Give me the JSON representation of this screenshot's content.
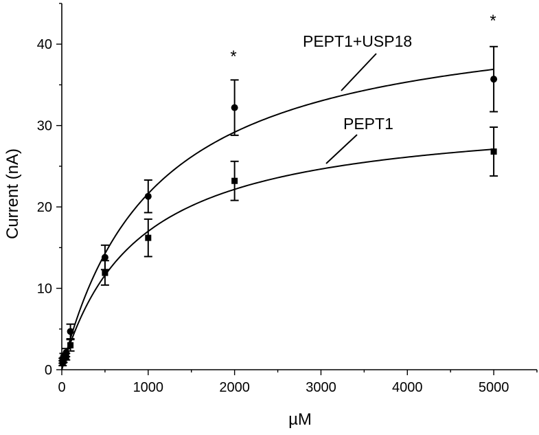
{
  "chart_data": {
    "type": "scatter",
    "xlabel": "µM",
    "ylabel": "Current (nA)",
    "xlim": [
      0,
      5500
    ],
    "ylim": [
      0,
      45
    ],
    "x_ticks": [
      0,
      1000,
      2000,
      3000,
      4000,
      5000
    ],
    "y_ticks": [
      0,
      10,
      20,
      30,
      40
    ],
    "x_tick_labels": [
      "0",
      "1000",
      "2000",
      "3000",
      "4000",
      "5000"
    ],
    "y_tick_labels": [
      "0",
      "10",
      "20",
      "30",
      "40"
    ],
    "grid": false,
    "series": [
      {
        "name": "PEPT1+USP18",
        "marker": "circle",
        "x": [
          10,
          20,
          50,
          100,
          500,
          1000,
          2000,
          5000
        ],
        "y": [
          1.1,
          1.6,
          2.1,
          4.7,
          13.8,
          21.3,
          32.2,
          35.7
        ],
        "err": [
          0.3,
          0.4,
          0.5,
          0.9,
          1.5,
          2.0,
          3.4,
          4.0
        ],
        "fit": {
          "vmax": 44.8,
          "km": 1070
        }
      },
      {
        "name": "PEPT1",
        "marker": "square",
        "x": [
          10,
          20,
          50,
          100,
          500,
          1000,
          2000,
          5000
        ],
        "y": [
          0.8,
          1.2,
          1.6,
          3.0,
          11.9,
          16.2,
          23.2,
          26.8
        ],
        "err": [
          0.3,
          0.3,
          0.4,
          0.7,
          1.5,
          2.3,
          2.4,
          3.0
        ],
        "fit": {
          "vmax": 31.8,
          "km": 870
        }
      }
    ],
    "annotations": [
      {
        "text": "*",
        "x": 2000,
        "y": 38
      },
      {
        "text": "*",
        "x": 5000,
        "y": 42.3
      }
    ]
  }
}
